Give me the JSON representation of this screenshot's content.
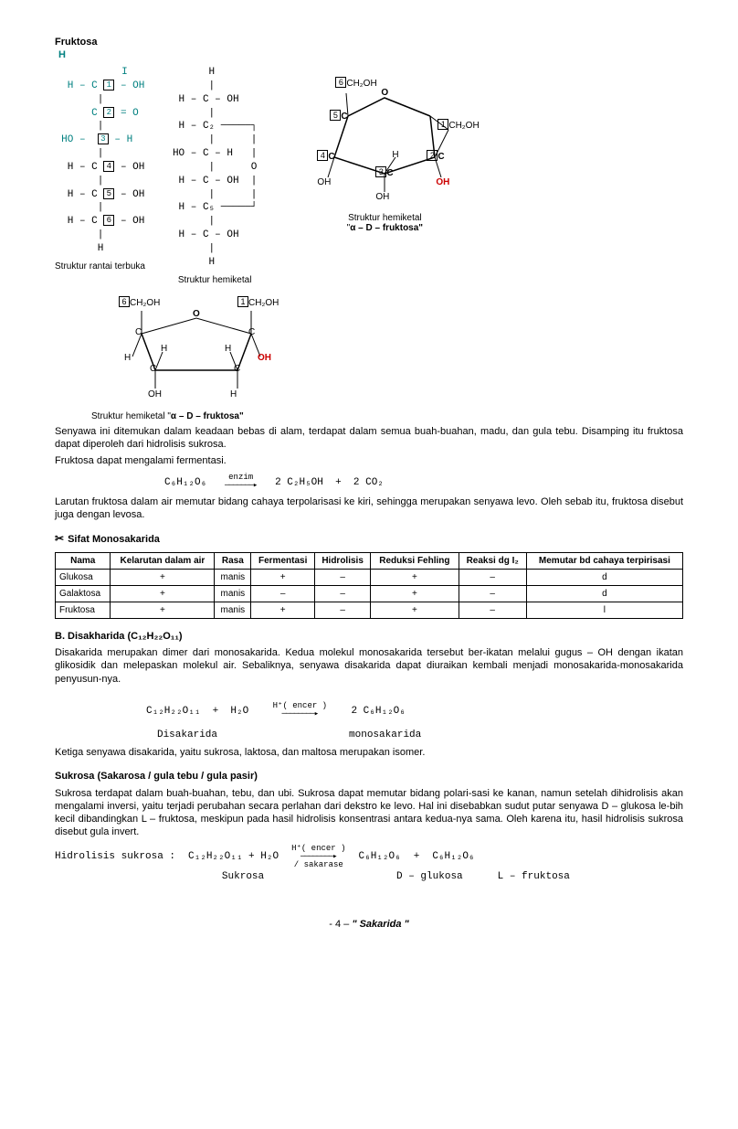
{
  "header": {
    "title": "Fruktosa",
    "symbol_H": "H"
  },
  "openChain": {
    "lines": [
      "           I",
      "  H – C <1> – OH",
      "       |",
      "      C <2> = O",
      "       |",
      " HO –  <3> – H",
      "       |",
      "  H – C <4> – OH",
      "       |",
      "  H – C <5> – OH",
      "       |",
      "  H – C <6> – OH",
      "       |",
      "       H"
    ],
    "tealLineIdx": [
      0,
      1,
      3,
      5
    ],
    "caption": "Struktur rantai terbuka"
  },
  "hemiketalChain": {
    "lines": [
      "      H",
      "      |",
      " H – C – OH",
      "      |",
      " H – C₂ ─────┐",
      "      |      |",
      "HO – C – H   |",
      "      |      O",
      " H – C – OH  |",
      "      |      |",
      " H – C₅ ─────┘",
      "      |",
      " H – C – OH",
      "      |",
      "      H"
    ],
    "caption": "Struktur hemiketal"
  },
  "ring1": {
    "labels": {
      "top6": "CH₂OH",
      "n6": "6",
      "c5": "C",
      "n5": "5",
      "o": "O",
      "c1g": "CH₂OH",
      "n1": "1",
      "c2": "C",
      "n2": "2",
      "c3": "C",
      "n3": "3",
      "c4": "C",
      "n4": "4",
      "OH_r": "OH",
      "OH_b1": "OH",
      "OH_b2": "OH",
      "Hc3": "H"
    },
    "caption_line1": "Struktur  hemiketal",
    "caption_line2_pre": "\"",
    "caption_line2_alpha": "α",
    "caption_line2_post": " – D – fruktosa\""
  },
  "ring2": {
    "labels": {
      "tl": "CH₂OH",
      "n6": "6",
      "tr": "CH₂OH",
      "n1": "1",
      "o": "O",
      "c": "C",
      "h": "H",
      "oh": "OH",
      "ohRed": "OH"
    },
    "caption_pre": "Struktur  hemiketal \"",
    "caption_alpha": "α",
    "caption_post": " – D – fruktosa\""
  },
  "para1": "Senyawa ini ditemukan dalam keadaan bebas di alam, terdapat dalam semua buah-buahan, madu, dan gula tebu. Disamping itu fruktosa dapat diperoleh dari hidrolisis sukrosa.",
  "para1b": "Fruktosa dapat mengalami fermentasi.",
  "eq1": {
    "left": "C₆H₁₂O₆",
    "top": "enzim",
    "right": "2 C₂H₅OH  +  2 CO₂"
  },
  "para2": "Larutan fruktosa dalam air memutar bidang cahaya terpolarisasi ke kiri, sehingga merupakan senyawa levo. Oleh sebab itu, fruktosa disebut juga dengan levosa.",
  "propsHeader": "Sifat Monosakarida",
  "table": {
    "cols": [
      "Nama",
      "Kelarutan dalam air",
      "Rasa",
      "Fermentasi",
      "Hidrolisis",
      "Reduksi Fehling",
      "Reaksi dg I₂",
      "Memutar bd cahaya terpirisasi"
    ],
    "rows": [
      [
        "Glukosa",
        "+",
        "manis",
        "+",
        "–",
        "+",
        "–",
        "d"
      ],
      [
        "Galaktosa",
        "+",
        "manis",
        "–",
        "–",
        "+",
        "–",
        "d"
      ],
      [
        "Fruktosa",
        "+",
        "manis",
        "+",
        "–",
        "+",
        "–",
        "l"
      ]
    ]
  },
  "sectionB": {
    "title": "B.  Disakharida (C₁₂H₂₂O₁₁)",
    "p1": "Disakarida merupakan dimer dari monosakarida. Kedua molekul monosakarida tersebut ber-ikatan melalui gugus – OH dengan ikatan glikosidik dan melepaskan molekul air. Sebaliknya, senyawa disakarida dapat diuraikan kembali menjadi monosakarida-monosakarida penyusun-nya.",
    "eq": {
      "left": "C₁₂H₂₂O₁₁  +  H₂O",
      "top": "H⁺( encer )",
      "right": "2 C₆H₁₂O₆",
      "subL": "Disakarida",
      "subR": "monosakarida"
    },
    "p2": "Ketiga senyawa disakarida, yaitu sukrosa, laktosa, dan maltosa merupakan isomer."
  },
  "sukrosa": {
    "title_bold": "Sukrosa",
    "title_rest": " (Sakarosa / gula tebu / gula pasir)",
    "p1": "Sukrosa terdapat dalam buah-buahan, tebu, dan ubi. Sukrosa dapat memutar bidang polari-sasi ke kanan, namun setelah dihidrolisis akan mengalami inversi, yaitu terjadi perubahan secara perlahan dari dekstro ke levo. Hal ini disebabkan sudut putar senyawa D – glukosa le-bih kecil dibandingkan L – fruktosa, meskipun pada hasil hidrolisis konsentrasi antara kedua-nya sama. Oleh karena itu, hasil hidrolisis sukrosa disebut gula invert.",
    "eq": {
      "label": "Hidrolisis sukrosa :",
      "left": "C₁₂H₂₂O₁₁  +  H₂O",
      "top": "H⁺( encer )",
      "bot": "/ sakarase",
      "r1": "C₆H₁₂O₆",
      "r2": "C₆H₁₂O₆",
      "sub0": "Sukrosa",
      "sub1": "D – glukosa",
      "sub2": "L – fruktosa"
    }
  },
  "footer": {
    "page": "- 4  –",
    "title": " \" Sakarida \""
  }
}
